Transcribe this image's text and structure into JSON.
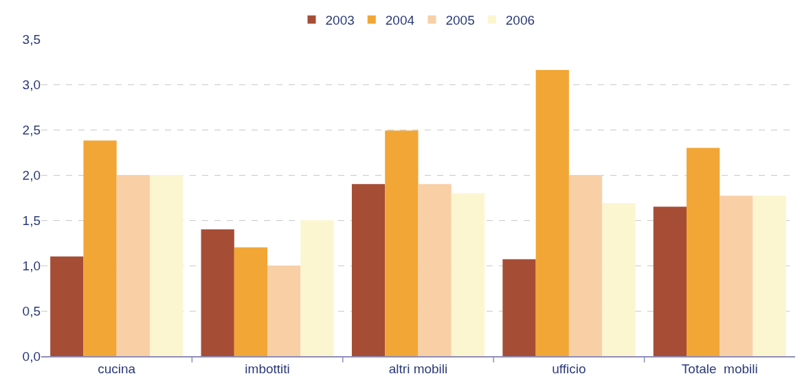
{
  "chart_data": {
    "type": "bar",
    "categories": [
      "cucina",
      "imbottiti",
      "altri mobili",
      "ufficio",
      "Totale  mobili"
    ],
    "series": [
      {
        "name": "2003",
        "color": "#a64d35",
        "values": [
          1.1,
          1.4,
          1.9,
          1.07,
          1.65
        ]
      },
      {
        "name": "2004",
        "color": "#f2a636",
        "values": [
          2.38,
          1.2,
          2.49,
          3.16,
          2.3
        ]
      },
      {
        "name": "2005",
        "color": "#f9cfa6",
        "values": [
          2.0,
          1.0,
          1.9,
          2.0,
          1.77
        ]
      },
      {
        "name": "2006",
        "color": "#fbf6d0",
        "values": [
          2.0,
          1.5,
          1.8,
          1.69,
          1.77
        ]
      }
    ],
    "ylim": [
      0,
      3.5
    ],
    "yticks": [
      {
        "value": 0,
        "label": "0,0"
      },
      {
        "value": 0.5,
        "label": "0,5"
      },
      {
        "value": 1,
        "label": "1,0"
      },
      {
        "value": 1.5,
        "label": "1,5"
      },
      {
        "value": 2,
        "label": "2,0"
      },
      {
        "value": 2.5,
        "label": "2,5"
      },
      {
        "value": 3,
        "label": "3,0"
      },
      {
        "value": 3.5,
        "label": "3,5"
      }
    ],
    "grid": "y",
    "legend": "top"
  }
}
